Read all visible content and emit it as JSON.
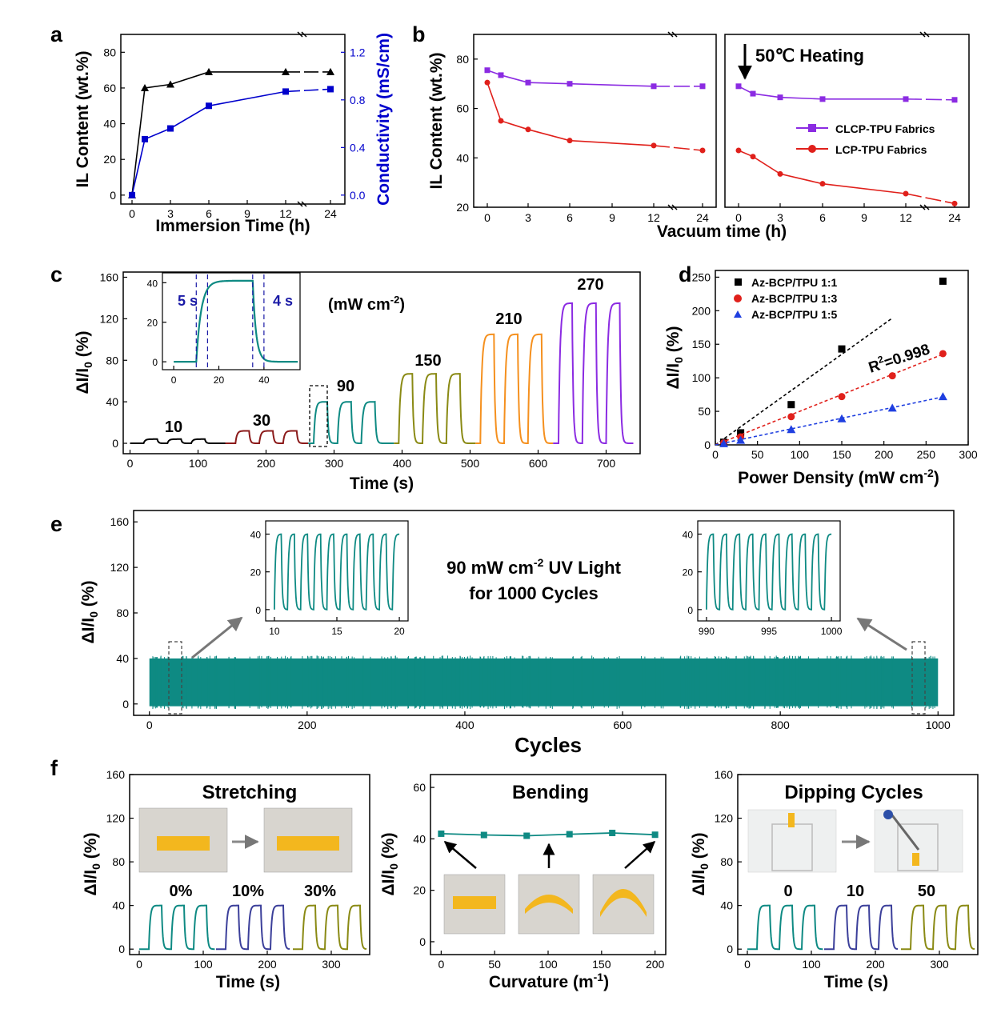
{
  "panels": {
    "a": "a",
    "b": "b",
    "c": "c",
    "d": "d",
    "e": "e",
    "f": "f"
  },
  "colors": {
    "black": "#000000",
    "blue": "#0000cc",
    "purple": "#8b2be2",
    "red": "#e0201b",
    "teal": "#0e8a83",
    "dark_red": "#8b1a1a",
    "olive": "#8a8a14",
    "orange": "#f5901e",
    "violet": "#8b2be2",
    "navy": "#3b3f9a",
    "grey_arrow": "#777777"
  },
  "a": {
    "xlabel": "Immersion Time (h)",
    "ylabel": "IL Content (wt.%)",
    "ylabel2": "Conductivity (mS/cm)",
    "xticks": [
      "0",
      "3",
      "6",
      "9",
      "12",
      "24"
    ],
    "yticks": [
      "0",
      "20",
      "40",
      "60",
      "80"
    ],
    "y2ticks": [
      "0.0",
      "0.4",
      "0.8",
      "1.2"
    ]
  },
  "b": {
    "xlabel": "Vacuum time (h)",
    "ylabel": "IL Content (wt.%)",
    "xticks": [
      "0",
      "3",
      "6",
      "9",
      "12",
      "24"
    ],
    "yticks": [
      "20",
      "40",
      "60",
      "80"
    ],
    "annotation": "50℃ Heating",
    "legend": [
      "CLCP-TPU Fabrics",
      "LCP-TPU Fabrics"
    ]
  },
  "c": {
    "xlabel": "Time (s)",
    "ylabel": "ΔI/I",
    "ylabel_sub": "0",
    "ylabel_tail": " (%)",
    "xticks": [
      "0",
      "100",
      "200",
      "300",
      "400",
      "500",
      "600",
      "700"
    ],
    "yticks": [
      "0",
      "40",
      "80",
      "120",
      "160"
    ],
    "unit_label": "(mW cm",
    "unit_sup": "-2",
    "unit_close": ")",
    "power_labels": [
      "10",
      "30",
      "90",
      "150",
      "210",
      "270"
    ],
    "inset": {
      "xticks": [
        "0",
        "20",
        "40"
      ],
      "yticks": [
        "0",
        "20",
        "40"
      ],
      "rise": "5 s",
      "fall": "4 s"
    }
  },
  "d": {
    "xlabel": "Power Density (mW cm",
    "xlabel_sup": "-2",
    "xlabel_close": ")",
    "ylabel": "ΔI/I",
    "ylabel_sub": "0",
    "ylabel_tail": " (%)",
    "xticks": [
      "0",
      "50",
      "100",
      "150",
      "200",
      "250",
      "300"
    ],
    "yticks": [
      "0",
      "50",
      "100",
      "150",
      "200",
      "250"
    ],
    "legend": [
      "Az-BCP/TPU 1:1",
      "Az-BCP/TPU 1:3",
      "Az-BCP/TPU 1:5"
    ],
    "r2_label": "R",
    "r2_sup": "2",
    "r2_value": "=0.998"
  },
  "e": {
    "xlabel": "Cycles",
    "ylabel": "ΔI/I",
    "ylabel_sub": "0",
    "ylabel_tail": " (%)",
    "xticks": [
      "0",
      "200",
      "400",
      "600",
      "800",
      "1000"
    ],
    "yticks": [
      "0",
      "40",
      "80",
      "120",
      "160"
    ],
    "title_line1_a": "90 mW cm",
    "title_line1_sup": "-2",
    "title_line1_b": " UV Light",
    "title_line2": "for 1000 Cycles",
    "inset1": {
      "xticks": [
        "10",
        "15",
        "20"
      ],
      "yticks": [
        "0",
        "20",
        "40"
      ]
    },
    "inset2": {
      "xticks": [
        "990",
        "995",
        "1000"
      ],
      "yticks": [
        "0",
        "20",
        "40"
      ]
    }
  },
  "f": {
    "f1": {
      "title": "Stretching",
      "xlabel": "Time (s)",
      "xticks": [
        "0",
        "100",
        "200",
        "300"
      ],
      "yticks": [
        "0",
        "40",
        "80",
        "120",
        "160"
      ],
      "labels": [
        "0%",
        "10%",
        "30%"
      ]
    },
    "f2": {
      "title": "Bending",
      "xlabel": "Curvature (m",
      "xlabel_sup": "-1",
      "xlabel_close": ")",
      "xticks": [
        "0",
        "50",
        "100",
        "150",
        "200"
      ],
      "yticks": [
        "0",
        "20",
        "40",
        "60"
      ]
    },
    "f3": {
      "title": "Dipping Cycles",
      "xlabel": "Time (s)",
      "xticks": [
        "0",
        "100",
        "200",
        "300"
      ],
      "yticks": [
        "0",
        "40",
        "80",
        "120",
        "160"
      ],
      "labels": [
        "0",
        "10",
        "50"
      ]
    },
    "ylabel": "ΔI/I",
    "ylabel_sub": "0",
    "ylabel_tail": " (%)"
  },
  "chart_data": [
    {
      "id": "a",
      "type": "line",
      "x": [
        "0",
        "1",
        "3",
        "6",
        "12",
        "24"
      ],
      "series": [
        {
          "name": "",
          "axis": "left",
          "values": [
            0,
            60,
            62,
            69,
            69,
            69
          ]
        },
        {
          "name": "",
          "axis": "right",
          "values": [
            0,
            0.47,
            0.56,
            0.75,
            0.87,
            0.89
          ]
        }
      ],
      "ylim": [
        -5,
        90
      ],
      "y2lim": [
        -0.075,
        1.35
      ]
    },
    {
      "id": "b",
      "type": "line",
      "segments": [
        "vacuum",
        "50℃ Heating"
      ],
      "x": [
        "0",
        "1",
        "3",
        "6",
        "12",
        "24"
      ],
      "series": [
        {
          "name": "CLCP-TPU Fabrics",
          "values": [
            [
              75.5,
              73.5,
              70.5,
              70,
              69,
              69
            ],
            [
              69,
              66,
              64.5,
              63.8,
              63.8,
              63.5
            ]
          ]
        },
        {
          "name": "LCP-TPU Fabrics",
          "values": [
            [
              70.5,
              55,
              51.5,
              47,
              45,
              43
            ],
            [
              43,
              40.5,
              33.5,
              29.5,
              25.5,
              21.5
            ]
          ]
        }
      ],
      "ylim": [
        20,
        90
      ]
    },
    {
      "id": "c",
      "type": "line",
      "xlim": [
        -10,
        750
      ],
      "ylim": [
        -10,
        165
      ],
      "pulses": [
        {
          "power": "10",
          "peak": 4,
          "starts": [
            20,
            55,
            90
          ]
        },
        {
          "power": "30",
          "peak": 12,
          "starts": [
            155,
            190,
            225
          ]
        },
        {
          "power": "90",
          "peak": 40,
          "starts": [
            270,
            305,
            340
          ]
        },
        {
          "power": "150",
          "peak": 67,
          "starts": [
            395,
            430,
            465
          ]
        },
        {
          "power": "210",
          "peak": 105,
          "starts": [
            515,
            550,
            585
          ]
        },
        {
          "power": "270",
          "peak": 135,
          "starts": [
            630,
            665,
            700
          ]
        }
      ],
      "pulse_width": 20
    },
    {
      "id": "d",
      "type": "scatter",
      "x": [
        10,
        30,
        90,
        150,
        210,
        270
      ],
      "series": [
        {
          "name": "Az-BCP/TPU 1:1",
          "values": [
            4,
            18,
            60,
            143,
            null,
            244
          ]
        },
        {
          "name": "Az-BCP/TPU 1:3",
          "values": [
            3,
            12,
            42,
            72,
            103,
            136
          ]
        },
        {
          "name": "Az-BCP/TPU 1:5",
          "values": [
            2,
            7,
            23,
            39,
            55,
            72
          ]
        }
      ],
      "xlim": [
        0,
        300
      ],
      "ylim": [
        0,
        260
      ]
    },
    {
      "id": "e",
      "type": "area",
      "xlim": [
        -20,
        1020
      ],
      "ylim": [
        -10,
        170
      ],
      "cycles": 1000,
      "band": [
        0,
        40
      ]
    },
    {
      "id": "f2",
      "type": "line",
      "x": [
        0,
        40,
        80,
        120,
        160,
        200
      ],
      "values": [
        42,
        41.5,
        41.2,
        41.8,
        42.3,
        41.6
      ],
      "xlim": [
        -10,
        210
      ],
      "ylim": [
        -5,
        65
      ]
    }
  ]
}
